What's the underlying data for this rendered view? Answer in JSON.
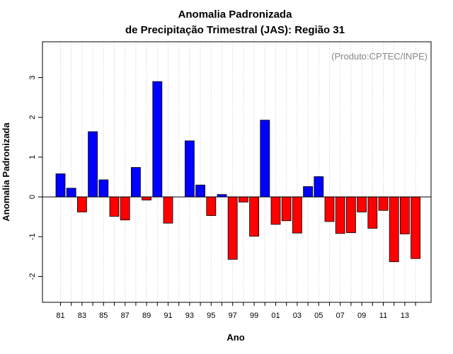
{
  "chart_data": {
    "type": "bar",
    "title": "Anomalia Padronizada",
    "subtitle": "de Precipitação Trimestral (JAS): Região 31",
    "annotation": "(Produto:CPTEC/INPE)",
    "xlabel": "Ano",
    "ylabel": "Anomalia Padronizada",
    "ylim": [
      -2.65,
      3.9
    ],
    "yticks": [
      -2,
      -1,
      0,
      1,
      2,
      3
    ],
    "xtick_labels": [
      "81",
      "83",
      "85",
      "87",
      "89",
      "91",
      "93",
      "95",
      "97",
      "99",
      "01",
      "03",
      "05",
      "07",
      "09",
      "11",
      "13"
    ],
    "grid": "vertical dotted",
    "colors": {
      "positive": "#0000ff",
      "negative": "#ff0000",
      "zero_line": "#000000"
    },
    "categories": [
      "81",
      "82",
      "83",
      "84",
      "85",
      "86",
      "87",
      "88",
      "89",
      "90",
      "91",
      "92",
      "93",
      "94",
      "95",
      "96",
      "97",
      "98",
      "99",
      "00",
      "01",
      "02",
      "03",
      "04",
      "05",
      "06",
      "07",
      "08",
      "09",
      "10",
      "11",
      "12",
      "13",
      "14"
    ],
    "values": [
      0.58,
      0.22,
      -0.38,
      1.64,
      0.43,
      -0.49,
      -0.58,
      0.74,
      -0.08,
      2.9,
      -0.66,
      0.0,
      1.41,
      0.3,
      -0.47,
      0.06,
      -1.57,
      -0.13,
      -0.99,
      1.93,
      -0.69,
      -0.6,
      -0.91,
      0.26,
      0.51,
      -0.62,
      -0.92,
      -0.9,
      -0.38,
      -0.79,
      -0.34,
      -1.63,
      -0.93,
      -1.55
    ]
  }
}
